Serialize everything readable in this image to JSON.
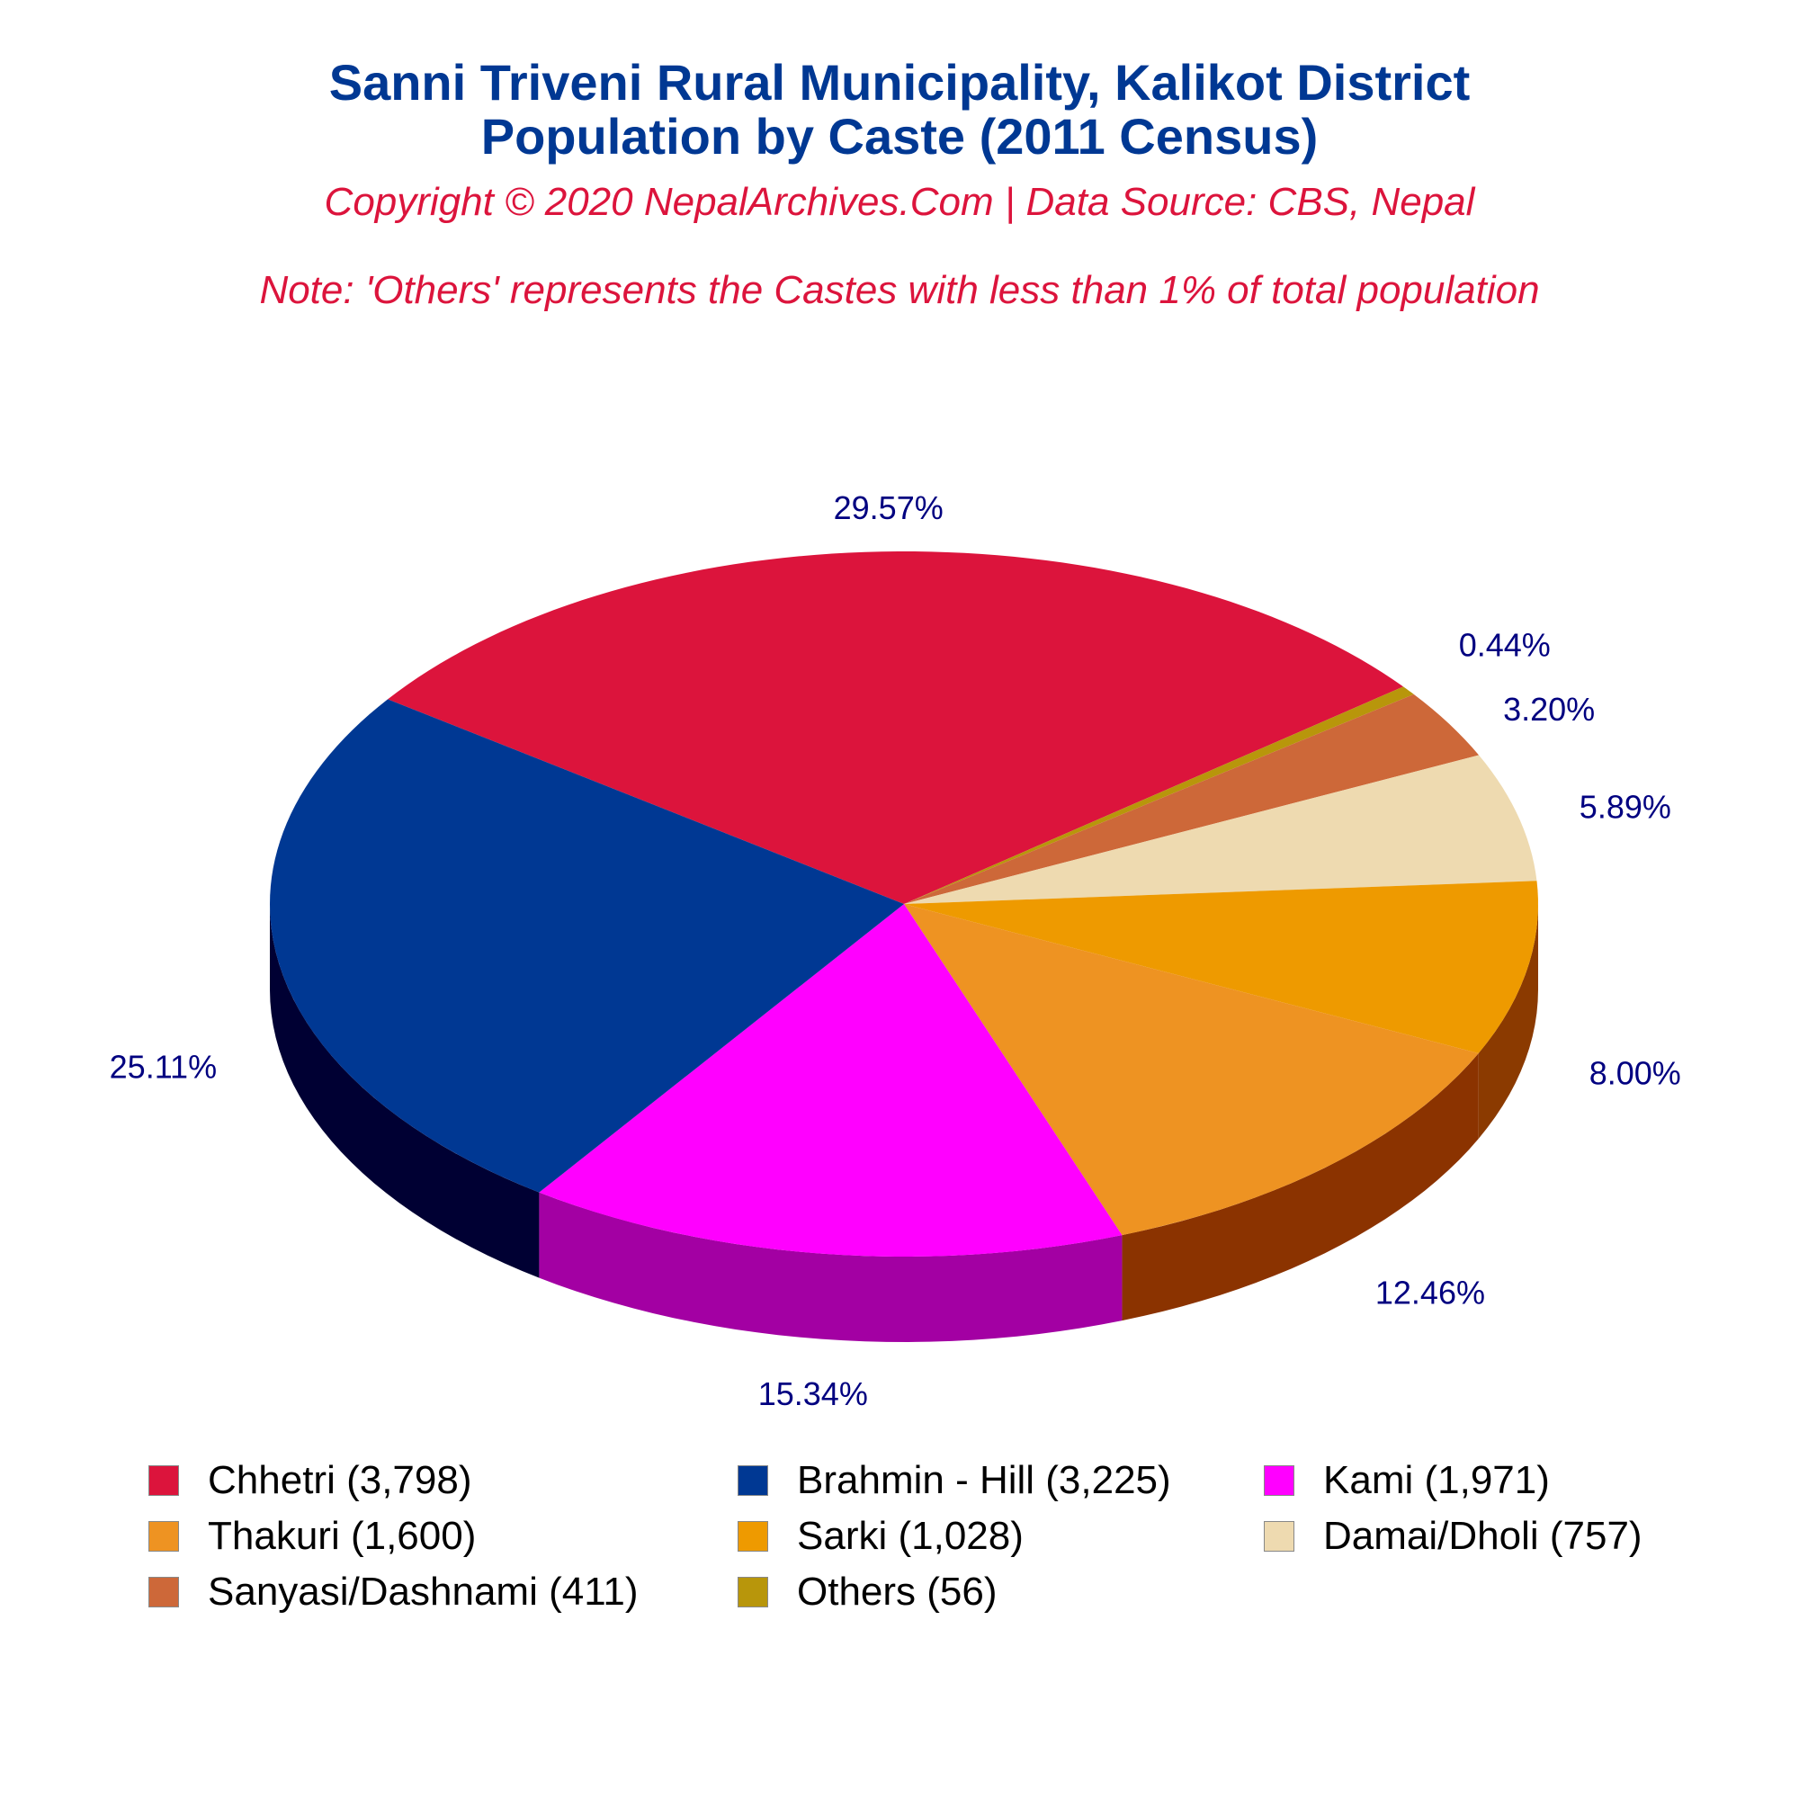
{
  "title": {
    "line1": "Sanni Triveni Rural Municipality, Kalikot District",
    "line2": "Population by Caste (2011 Census)",
    "color": "#003893"
  },
  "subtitle": {
    "copyright": "Copyright © 2020 NepalArchives.Com | Data Source: CBS, Nepal",
    "note": "Note: 'Others' represents the Castes with less than 1% of total population",
    "color": "#DC143C"
  },
  "chart_data": {
    "type": "pie",
    "style": "3d-tilted",
    "start_angle_deg": 144.5,
    "direction": "clockwise",
    "label_color": "#000080",
    "slices": [
      {
        "name": "Chhetri",
        "value": 3798,
        "percent": "29.57%",
        "legend": "Chhetri (3,798)",
        "color": "#DC143C",
        "side_color": "#8B0A1F"
      },
      {
        "name": "Others",
        "value": 56,
        "percent": "0.44%",
        "legend": "Others (56)",
        "color": "#B8960B",
        "side_color": "#6B5A05"
      },
      {
        "name": "Sanyasi/Dashnami",
        "value": 411,
        "percent": "3.20%",
        "legend": "Sanyasi/Dashnami (411)",
        "color": "#CD6839",
        "side_color": "#7A3A1A"
      },
      {
        "name": "Damai/Dholi",
        "value": 757,
        "percent": "5.89%",
        "legend": "Damai/Dholi (757)",
        "color": "#EEDAB0",
        "side_color": "#9A8A60"
      },
      {
        "name": "Sarki",
        "value": 1028,
        "percent": "8.00%",
        "legend": "Sarki (1,028)",
        "color": "#EE9A00",
        "side_color": "#8B3A00"
      },
      {
        "name": "Thakuri",
        "value": 1600,
        "percent": "12.46%",
        "legend": "Thakuri (1,600)",
        "color": "#EE9322",
        "side_color": "#8B3300"
      },
      {
        "name": "Kami",
        "value": 1971,
        "percent": "15.34%",
        "legend": "Kami (1,971)",
        "color": "#FF00FF",
        "side_color": "#A300A3"
      },
      {
        "name": "Brahmin - Hill",
        "value": 3225,
        "percent": "25.11%",
        "legend": "Brahmin - Hill (3,225)",
        "color": "#003893",
        "side_color": "#000033"
      }
    ],
    "legend_order": [
      "Chhetri",
      "Brahmin - Hill",
      "Kami",
      "Thakuri",
      "Sarki",
      "Damai/Dholi",
      "Sanyasi/Dashnami",
      "Others"
    ],
    "legend_position": "bottom"
  }
}
